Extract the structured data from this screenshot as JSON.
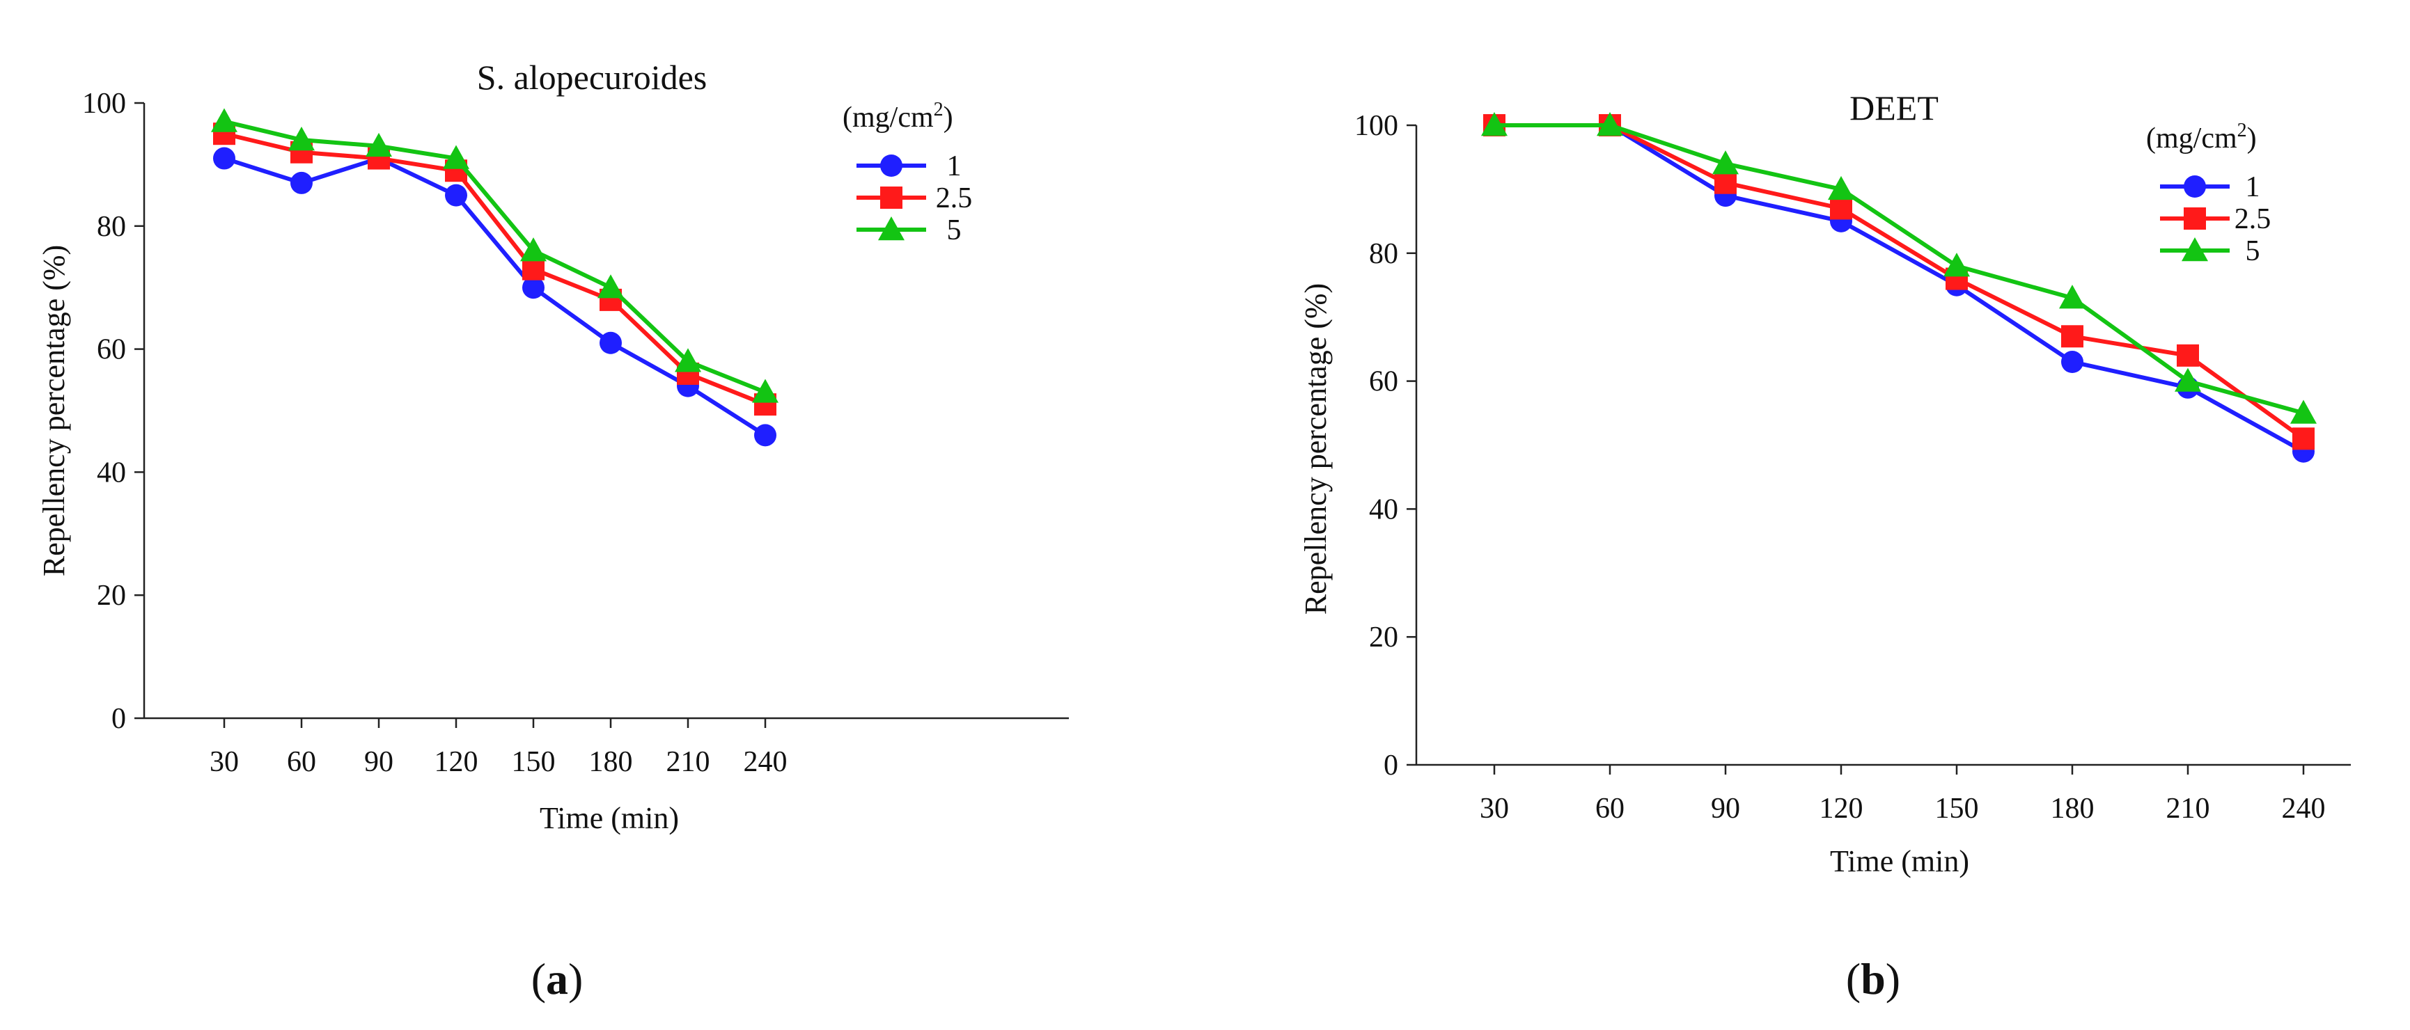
{
  "chart_data": [
    {
      "type": "line",
      "title": "S. alopecuroides",
      "xlabel": "Time (min)",
      "ylabel": "Repellency percentage (%)",
      "categories": [
        "30",
        "60",
        "90",
        "120",
        "150",
        "180",
        "210",
        "240"
      ],
      "yticks": [
        "0",
        "20",
        "40",
        "60",
        "80",
        "100"
      ],
      "ylim": [
        0,
        100
      ],
      "legend_title": "(mg/cm",
      "legend_title_sup": "2",
      "legend_title_end": ")",
      "legend_position": "top-right",
      "series": [
        {
          "name": "1",
          "color": "#1f1fff",
          "marker": "circle",
          "values": [
            91,
            87,
            91,
            85,
            70,
            61,
            54,
            46
          ]
        },
        {
          "name": "2.5",
          "color": "#ff1a1a",
          "marker": "square",
          "values": [
            95,
            92,
            91,
            89,
            73,
            68,
            56,
            51
          ]
        },
        {
          "name": "5",
          "color": "#13c413",
          "marker": "triangle",
          "values": [
            97,
            94,
            93,
            91,
            76,
            70,
            58,
            53
          ]
        }
      ],
      "panel_label": {
        "open": "(",
        "letter": "a",
        "close": ")"
      }
    },
    {
      "type": "line",
      "title": "DEET",
      "xlabel": "Time (min)",
      "ylabel": "Repellency percentage (%)",
      "categories": [
        "30",
        "60",
        "90",
        "120",
        "150",
        "180",
        "210",
        "240"
      ],
      "yticks": [
        "0",
        "20",
        "40",
        "60",
        "80",
        "100"
      ],
      "ylim": [
        0,
        100
      ],
      "legend_title": "(mg/cm",
      "legend_title_sup": "2",
      "legend_title_end": ")",
      "legend_position": "top-right",
      "series": [
        {
          "name": "1",
          "color": "#1f1fff",
          "marker": "circle",
          "values": [
            100,
            100,
            89,
            85,
            75,
            63,
            59,
            49
          ]
        },
        {
          "name": "2.5",
          "color": "#ff1a1a",
          "marker": "square",
          "values": [
            100,
            100,
            91,
            87,
            76,
            67,
            64,
            51
          ]
        },
        {
          "name": "5",
          "color": "#13c413",
          "marker": "triangle",
          "values": [
            100,
            100,
            94,
            90,
            78,
            73,
            60,
            55
          ]
        }
      ],
      "panel_label": {
        "open": "(",
        "letter": "b",
        "close": ")"
      }
    }
  ]
}
